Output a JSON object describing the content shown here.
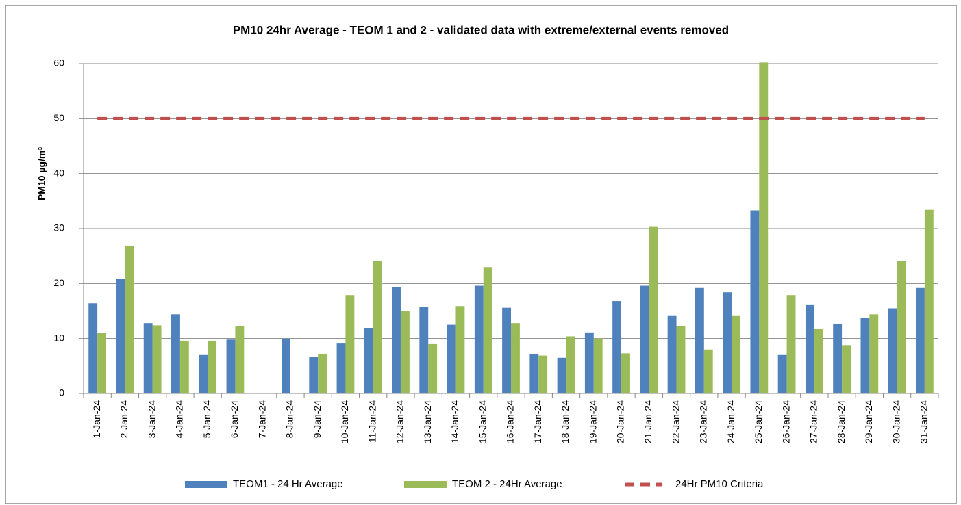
{
  "chart_data": {
    "type": "bar",
    "title": "PM10 24hr Average - TEOM 1 and 2 - validated data with extreme/external events removed",
    "y_label": "PM10 µg/m³",
    "categories": [
      "1-Jan-24",
      "2-Jan-24",
      "3-Jan-24",
      "4-Jan-24",
      "5-Jan-24",
      "6-Jan-24",
      "7-Jan-24",
      "8-Jan-24",
      "9-Jan-24",
      "10-Jan-24",
      "11-Jan-24",
      "12-Jan-24",
      "13-Jan-24",
      "14-Jan-24",
      "15-Jan-24",
      "16-Jan-24",
      "17-Jan-24",
      "18-Jan-24",
      "19-Jan-24",
      "20-Jan-24",
      "21-Jan-24",
      "22-Jan-24",
      "23-Jan-24",
      "24-Jan-24",
      "25-Jan-24",
      "26-Jan-24",
      "27-Jan-24",
      "28-Jan-24",
      "29-Jan-24",
      "30-Jan-24",
      "31-Jan-24"
    ],
    "series": [
      {
        "name": "TEOM1 - 24 Hr Average",
        "color": "#4f81bd",
        "values": [
          16.4,
          20.9,
          12.8,
          14.4,
          7.0,
          9.8,
          null,
          10.0,
          6.7,
          9.2,
          11.9,
          19.3,
          15.8,
          12.5,
          19.6,
          15.6,
          7.1,
          6.5,
          11.1,
          16.8,
          19.6,
          14.1,
          19.2,
          18.4,
          33.3,
          7.0,
          16.2,
          12.7,
          13.8,
          15.5,
          19.2
        ]
      },
      {
        "name": "TEOM 2 - 24Hr Average",
        "color": "#9bbb59",
        "values": [
          11.0,
          26.9,
          12.4,
          9.6,
          9.6,
          12.2,
          null,
          null,
          7.1,
          17.9,
          24.1,
          15.0,
          9.1,
          15.9,
          23.0,
          12.8,
          6.9,
          10.4,
          10.0,
          7.3,
          30.3,
          12.2,
          8.0,
          14.1,
          60.2,
          17.9,
          11.7,
          8.8,
          14.4,
          24.1,
          33.4
        ]
      },
      {
        "name": "24Hr PM10 Criteria",
        "color": "#c0504d",
        "type": "line",
        "dashed": true,
        "values": [
          50,
          50,
          50,
          50,
          50,
          50,
          50,
          50,
          50,
          50,
          50,
          50,
          50,
          50,
          50,
          50,
          50,
          50,
          50,
          50,
          50,
          50,
          50,
          50,
          50,
          50,
          50,
          50,
          50,
          50,
          50
        ]
      }
    ],
    "ylim": [
      0,
      60
    ],
    "yticks": [
      0,
      10,
      20,
      30,
      40,
      50,
      60
    ],
    "grid": true,
    "legend": "bottom"
  }
}
